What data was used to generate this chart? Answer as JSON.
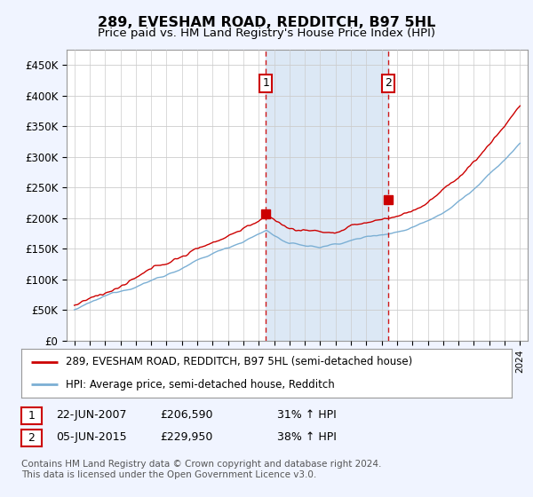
{
  "title": "289, EVESHAM ROAD, REDDITCH, B97 5HL",
  "subtitle": "Price paid vs. HM Land Registry's House Price Index (HPI)",
  "legend_line1": "289, EVESHAM ROAD, REDDITCH, B97 5HL (semi-detached house)",
  "legend_line2": "HPI: Average price, semi-detached house, Redditch",
  "annotation1_date": "22-JUN-2007",
  "annotation1_price": "£206,590",
  "annotation1_hpi": "31% ↑ HPI",
  "annotation1_year": 2007.47,
  "annotation1_value": 206590,
  "annotation2_date": "05-JUN-2015",
  "annotation2_price": "£229,950",
  "annotation2_hpi": "38% ↑ HPI",
  "annotation2_year": 2015.43,
  "annotation2_value": 229950,
  "footer": "Contains HM Land Registry data © Crown copyright and database right 2024.\nThis data is licensed under the Open Government Licence v3.0.",
  "ylim": [
    0,
    475000
  ],
  "xlim": [
    1994.5,
    2024.5
  ],
  "yticks": [
    0,
    50000,
    100000,
    150000,
    200000,
    250000,
    300000,
    350000,
    400000,
    450000
  ],
  "ytick_labels": [
    "£0",
    "£50K",
    "£100K",
    "£150K",
    "£200K",
    "£250K",
    "£300K",
    "£350K",
    "£400K",
    "£450K"
  ],
  "background_color": "#f0f4ff",
  "plot_bg_color": "#ffffff",
  "red_line_color": "#cc0000",
  "blue_line_color": "#7bafd4",
  "shade_color": "#dce8f5",
  "vline_color": "#cc0000",
  "box_color": "#cc0000",
  "grid_color": "#cccccc"
}
